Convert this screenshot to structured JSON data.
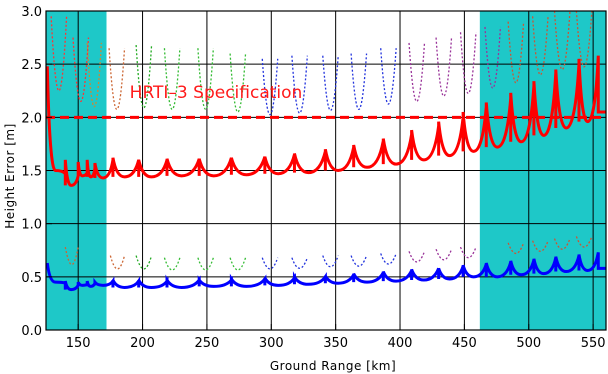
{
  "chart_data": {
    "type": "line",
    "title": "",
    "xlabel": "Ground Range [km]",
    "ylabel": "Height Error [m]",
    "xlim": [
      125,
      560
    ],
    "ylim": [
      0,
      3
    ],
    "x_ticks": [
      "150",
      "200",
      "250",
      "300",
      "350",
      "400",
      "450",
      "500",
      "550"
    ],
    "y_ticks": [
      "0.0",
      "0.5",
      "1.0",
      "1.5",
      "2.0",
      "2.5",
      "3.0"
    ],
    "grid": true,
    "colors": {
      "shade": "#1ec8c8",
      "red": "#ff0000",
      "blue": "#0000ff",
      "dotted": [
        "#ff3333",
        "#22aa22",
        "#33aa33",
        "#2233dd",
        "#993399"
      ]
    },
    "shaded_regions": [
      [
        125,
        172
      ],
      [
        462,
        560
      ]
    ],
    "annotations": [
      {
        "text": "HRTI–3 Specification",
        "x": 190,
        "y": 2.18,
        "color": "#ff1a1a"
      }
    ],
    "reference_lines": [
      {
        "y": 2.0,
        "style": "dashed",
        "color": "#ff0000"
      }
    ],
    "series": [
      {
        "color": "#ff0000",
        "style": "solid",
        "segments": [
          {
            "x0": 126,
            "x1": 140,
            "y_left": 2.48,
            "y_min": 1.5,
            "y_right": 1.47
          },
          {
            "x0": 140,
            "x1": 150,
            "y_left": 1.6,
            "y_min": 1.36,
            "y_right": 1.45
          },
          {
            "x0": 150,
            "x1": 157,
            "y_left": 1.58,
            "y_min": 1.45,
            "y_right": 1.48
          },
          {
            "x0": 157,
            "x1": 163,
            "y_left": 1.6,
            "y_min": 1.44,
            "y_right": 1.52
          },
          {
            "x0": 163,
            "x1": 177,
            "y_left": 1.57,
            "y_min": 1.43,
            "y_right": 1.6
          },
          {
            "x0": 177,
            "x1": 197,
            "y_left": 1.62,
            "y_min": 1.44,
            "y_right": 1.6
          },
          {
            "x0": 197,
            "x1": 219,
            "y_left": 1.6,
            "y_min": 1.44,
            "y_right": 1.6
          },
          {
            "x0": 219,
            "x1": 244,
            "y_left": 1.61,
            "y_min": 1.45,
            "y_right": 1.61
          },
          {
            "x0": 244,
            "x1": 269,
            "y_left": 1.61,
            "y_min": 1.45,
            "y_right": 1.62
          },
          {
            "x0": 269,
            "x1": 295,
            "y_left": 1.62,
            "y_min": 1.46,
            "y_right": 1.63
          },
          {
            "x0": 295,
            "x1": 318,
            "y_left": 1.63,
            "y_min": 1.47,
            "y_right": 1.65
          },
          {
            "x0": 318,
            "x1": 342,
            "y_left": 1.66,
            "y_min": 1.48,
            "y_right": 1.68
          },
          {
            "x0": 342,
            "x1": 364,
            "y_left": 1.7,
            "y_min": 1.5,
            "y_right": 1.72
          },
          {
            "x0": 364,
            "x1": 387,
            "y_left": 1.74,
            "y_min": 1.53,
            "y_right": 1.78
          },
          {
            "x0": 387,
            "x1": 409,
            "y_left": 1.8,
            "y_min": 1.56,
            "y_right": 1.84
          },
          {
            "x0": 409,
            "x1": 430,
            "y_left": 1.88,
            "y_min": 1.6,
            "y_right": 1.92
          },
          {
            "x0": 430,
            "x1": 449,
            "y_left": 1.96,
            "y_min": 1.64,
            "y_right": 2.0
          },
          {
            "x0": 449,
            "x1": 467,
            "y_left": 2.05,
            "y_min": 1.68,
            "y_right": 2.1
          },
          {
            "x0": 467,
            "x1": 486,
            "y_left": 2.14,
            "y_min": 1.72,
            "y_right": 2.18
          },
          {
            "x0": 486,
            "x1": 504,
            "y_left": 2.23,
            "y_min": 1.77,
            "y_right": 2.3
          },
          {
            "x0": 504,
            "x1": 521,
            "y_left": 2.34,
            "y_min": 1.83,
            "y_right": 2.42
          },
          {
            "x0": 521,
            "x1": 539,
            "y_left": 2.45,
            "y_min": 1.9,
            "y_right": 2.5
          },
          {
            "x0": 539,
            "x1": 554,
            "y_left": 2.55,
            "y_min": 1.96,
            "y_right": 2.58
          },
          {
            "x0": 554,
            "x1": 560,
            "y_left": 2.05,
            "y_min": 2.05,
            "y_right": 2.05
          }
        ]
      },
      {
        "color": "#0000ff",
        "style": "solid",
        "segments": [
          {
            "x0": 126,
            "x1": 140,
            "y_left": 0.63,
            "y_min": 0.45,
            "y_right": 0.44
          },
          {
            "x0": 140,
            "x1": 150,
            "y_left": 0.46,
            "y_min": 0.38,
            "y_right": 0.42
          },
          {
            "x0": 150,
            "x1": 157,
            "y_left": 0.45,
            "y_min": 0.42,
            "y_right": 0.43
          },
          {
            "x0": 157,
            "x1": 163,
            "y_left": 0.46,
            "y_min": 0.41,
            "y_right": 0.44
          },
          {
            "x0": 163,
            "x1": 177,
            "y_left": 0.45,
            "y_min": 0.42,
            "y_right": 0.46
          },
          {
            "x0": 177,
            "x1": 197,
            "y_left": 0.47,
            "y_min": 0.4,
            "y_right": 0.46
          },
          {
            "x0": 197,
            "x1": 219,
            "y_left": 0.47,
            "y_min": 0.4,
            "y_right": 0.46
          },
          {
            "x0": 219,
            "x1": 244,
            "y_left": 0.47,
            "y_min": 0.4,
            "y_right": 0.47
          },
          {
            "x0": 244,
            "x1": 269,
            "y_left": 0.47,
            "y_min": 0.41,
            "y_right": 0.47
          },
          {
            "x0": 269,
            "x1": 295,
            "y_left": 0.48,
            "y_min": 0.41,
            "y_right": 0.48
          },
          {
            "x0": 295,
            "x1": 318,
            "y_left": 0.49,
            "y_min": 0.42,
            "y_right": 0.49
          },
          {
            "x0": 318,
            "x1": 342,
            "y_left": 0.5,
            "y_min": 0.43,
            "y_right": 0.5
          },
          {
            "x0": 342,
            "x1": 364,
            "y_left": 0.51,
            "y_min": 0.44,
            "y_right": 0.52
          },
          {
            "x0": 364,
            "x1": 387,
            "y_left": 0.53,
            "y_min": 0.45,
            "y_right": 0.54
          },
          {
            "x0": 387,
            "x1": 409,
            "y_left": 0.55,
            "y_min": 0.46,
            "y_right": 0.56
          },
          {
            "x0": 409,
            "x1": 430,
            "y_left": 0.57,
            "y_min": 0.47,
            "y_right": 0.58
          },
          {
            "x0": 430,
            "x1": 449,
            "y_left": 0.58,
            "y_min": 0.48,
            "y_right": 0.6
          },
          {
            "x0": 449,
            "x1": 467,
            "y_left": 0.61,
            "y_min": 0.5,
            "y_right": 0.62
          },
          {
            "x0": 467,
            "x1": 486,
            "y_left": 0.63,
            "y_min": 0.5,
            "y_right": 0.64
          },
          {
            "x0": 486,
            "x1": 504,
            "y_left": 0.65,
            "y_min": 0.52,
            "y_right": 0.66
          },
          {
            "x0": 504,
            "x1": 521,
            "y_left": 0.67,
            "y_min": 0.53,
            "y_right": 0.68
          },
          {
            "x0": 521,
            "x1": 539,
            "y_left": 0.69,
            "y_min": 0.55,
            "y_right": 0.7
          },
          {
            "x0": 539,
            "x1": 554,
            "y_left": 0.71,
            "y_min": 0.56,
            "y_right": 0.73
          },
          {
            "x0": 554,
            "x1": 560,
            "y_left": 0.58,
            "y_min": 0.58,
            "y_right": 0.58
          }
        ]
      }
    ],
    "dotted_curves": [
      {
        "x0": 129,
        "x1": 141,
        "top": 2.95,
        "bottom": 1.55,
        "color": "#ff3333"
      },
      {
        "x0": 146,
        "x1": 158,
        "top": 2.75,
        "bottom": 1.55,
        "color": "#ff3333"
      },
      {
        "x0": 157,
        "x1": 168,
        "top": 2.7,
        "bottom": 1.5,
        "color": "#cc8833"
      },
      {
        "x0": 174,
        "x1": 186,
        "top": 2.65,
        "bottom": 1.5,
        "color": "#cc6633"
      },
      {
        "x0": 195,
        "x1": 207,
        "top": 2.68,
        "bottom": 1.5,
        "color": "#22aa22"
      },
      {
        "x0": 217,
        "x1": 229,
        "top": 2.65,
        "bottom": 1.5,
        "color": "#33bb33"
      },
      {
        "x0": 243,
        "x1": 255,
        "top": 2.65,
        "bottom": 1.5,
        "color": "#33bb33"
      },
      {
        "x0": 268,
        "x1": 280,
        "top": 2.6,
        "bottom": 1.5,
        "color": "#33bb33"
      },
      {
        "x0": 293,
        "x1": 305,
        "top": 2.55,
        "bottom": 1.5,
        "color": "#2233dd"
      },
      {
        "x0": 316,
        "x1": 328,
        "top": 2.58,
        "bottom": 1.5,
        "color": "#2233dd"
      },
      {
        "x0": 340,
        "x1": 352,
        "top": 2.58,
        "bottom": 1.55,
        "color": "#2233dd"
      },
      {
        "x0": 362,
        "x1": 374,
        "top": 2.6,
        "bottom": 1.55,
        "color": "#2233dd"
      },
      {
        "x0": 385,
        "x1": 397,
        "top": 2.65,
        "bottom": 1.6,
        "color": "#2233dd"
      },
      {
        "x0": 407,
        "x1": 419,
        "top": 2.7,
        "bottom": 1.6,
        "color": "#993399"
      },
      {
        "x0": 428,
        "x1": 440,
        "top": 2.75,
        "bottom": 1.65,
        "color": "#993399"
      },
      {
        "x0": 447,
        "x1": 459,
        "top": 2.8,
        "bottom": 1.65,
        "color": "#993399"
      },
      {
        "x0": 466,
        "x1": 478,
        "top": 2.85,
        "bottom": 1.7,
        "color": "#993399"
      },
      {
        "x0": 484,
        "x1": 496,
        "top": 2.9,
        "bottom": 1.75,
        "color": "#cc5533"
      },
      {
        "x0": 503,
        "x1": 515,
        "top": 2.95,
        "bottom": 1.85,
        "color": "#cc5533"
      },
      {
        "x0": 520,
        "x1": 532,
        "top": 3.0,
        "bottom": 1.9,
        "color": "#cc5533"
      },
      {
        "x0": 537,
        "x1": 549,
        "top": 3.0,
        "bottom": 1.95,
        "color": "#cc5533"
      }
    ],
    "dotted_curves_low": [
      {
        "x0": 140,
        "x1": 150,
        "top": 0.78,
        "bottom": 0.45,
        "color": "#cc6633"
      },
      {
        "x0": 175,
        "x1": 186,
        "top": 0.7,
        "bottom": 0.45,
        "color": "#cc6633"
      },
      {
        "x0": 195,
        "x1": 207,
        "top": 0.7,
        "bottom": 0.45,
        "color": "#22aa22"
      },
      {
        "x0": 217,
        "x1": 229,
        "top": 0.68,
        "bottom": 0.45,
        "color": "#33bb33"
      },
      {
        "x0": 243,
        "x1": 255,
        "top": 0.68,
        "bottom": 0.45,
        "color": "#33bb33"
      },
      {
        "x0": 268,
        "x1": 280,
        "top": 0.68,
        "bottom": 0.45,
        "color": "#33bb33"
      },
      {
        "x0": 293,
        "x1": 305,
        "top": 0.68,
        "bottom": 0.47,
        "color": "#2233dd"
      },
      {
        "x0": 316,
        "x1": 328,
        "top": 0.68,
        "bottom": 0.48,
        "color": "#2233dd"
      },
      {
        "x0": 340,
        "x1": 352,
        "top": 0.7,
        "bottom": 0.49,
        "color": "#2233dd"
      },
      {
        "x0": 362,
        "x1": 374,
        "top": 0.7,
        "bottom": 0.5,
        "color": "#2233dd"
      },
      {
        "x0": 385,
        "x1": 397,
        "top": 0.72,
        "bottom": 0.52,
        "color": "#2233dd"
      },
      {
        "x0": 407,
        "x1": 419,
        "top": 0.74,
        "bottom": 0.54,
        "color": "#993399"
      },
      {
        "x0": 428,
        "x1": 440,
        "top": 0.76,
        "bottom": 0.56,
        "color": "#993399"
      },
      {
        "x0": 447,
        "x1": 459,
        "top": 0.78,
        "bottom": 0.58,
        "color": "#993399"
      },
      {
        "x0": 484,
        "x1": 496,
        "top": 0.82,
        "bottom": 0.62,
        "color": "#cc5533"
      },
      {
        "x0": 503,
        "x1": 515,
        "top": 0.84,
        "bottom": 0.64,
        "color": "#cc5533"
      },
      {
        "x0": 520,
        "x1": 532,
        "top": 0.86,
        "bottom": 0.66,
        "color": "#cc5533"
      },
      {
        "x0": 537,
        "x1": 549,
        "top": 0.88,
        "bottom": 0.68,
        "color": "#cc5533"
      }
    ]
  }
}
